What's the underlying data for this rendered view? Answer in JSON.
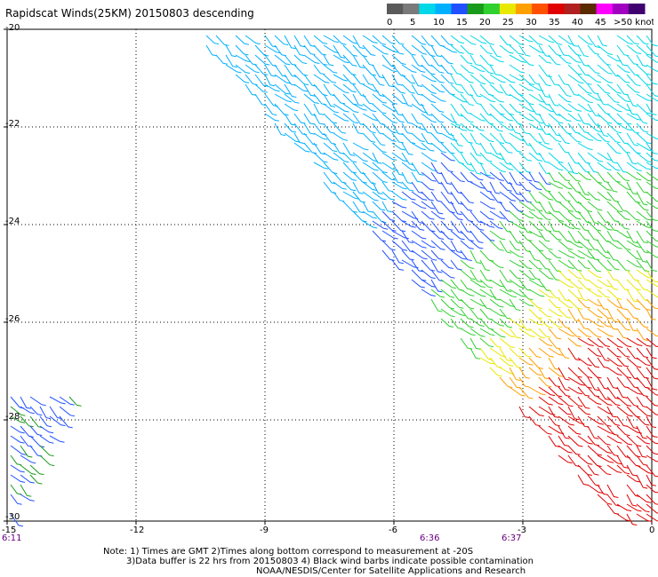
{
  "title": "Rapidscat Winds(25KM) 20150803 descending",
  "legend": {
    "labels": [
      "0",
      "5",
      "10",
      "15",
      "20",
      "25",
      "30",
      "35",
      "40",
      "45",
      ">50 knots"
    ],
    "colors": [
      "#5a5a5a",
      "#7a7a7a",
      "#00d8e8",
      "#00b0ff",
      "#2050ff",
      "#1a9a1a",
      "#30d030",
      "#e8e800",
      "#ffa000",
      "#ff5000",
      "#e00000",
      "#b02020",
      "#5a2a00",
      "#ff00ff",
      "#a000c0",
      "#400070"
    ]
  },
  "axes": {
    "x_ticks": [
      "-15",
      "-12",
      "-9",
      "-6",
      "-3",
      "0"
    ],
    "y_ticks": [
      "-20",
      "-22",
      "-24",
      "-26",
      "-28",
      "-30"
    ]
  },
  "time_labels": [
    "6:11",
    "6:36",
    "6:37"
  ],
  "notes": {
    "line1": "Note: 1) Times are GMT 2)Times along bottom correspond to measurement at -20S",
    "line2": "3)Data buffer is 22 hrs from 20150803 4) Black wind barbs indicate possible contamination",
    "line3": "NOAA/NESDIS/Center for Satellite Applications and Research"
  }
}
